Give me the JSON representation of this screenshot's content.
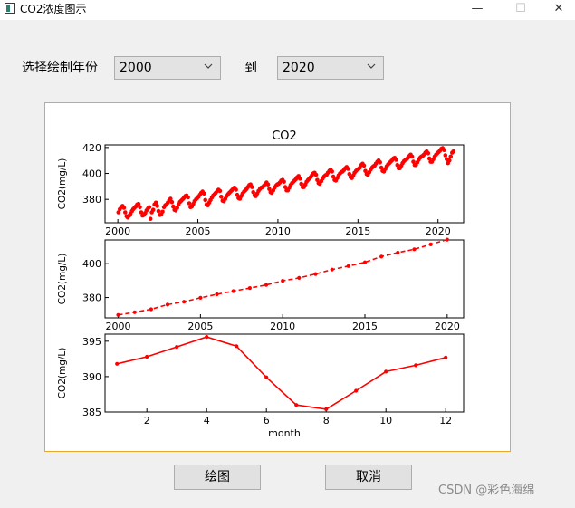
{
  "window": {
    "title": "CO2浓度图示",
    "minimize_glyph": "—",
    "maximize_glyph": "☐",
    "close_glyph": "✕"
  },
  "controls": {
    "range_label": "选择绘制年份",
    "start_year": "2000",
    "to_label": "到",
    "end_year": "2020"
  },
  "buttons": {
    "plot": "绘图",
    "cancel": "取消"
  },
  "watermark": "CSDN @彩色海绵",
  "chart_data": [
    {
      "type": "scatter",
      "title": "CO2",
      "ylabel": "CO2(mg/L)",
      "xlabel": "",
      "xlim": [
        1999.2,
        2021.6
      ],
      "ylim": [
        362,
        422
      ],
      "xticks": [
        2000,
        2005,
        2010,
        2015,
        2020
      ],
      "yticks": [
        380,
        400,
        420
      ],
      "color": "#ff0000",
      "marker": "dot",
      "series": [
        {
          "x": [
            2000.04,
            2000.12,
            2000.21,
            2000.29,
            2000.38,
            2000.46,
            2000.54,
            2000.62,
            2000.71,
            2000.79,
            2000.88,
            2000.96,
            2001.04,
            2001.12,
            2001.21,
            2001.29,
            2001.38,
            2001.46,
            2001.54,
            2001.62,
            2001.71,
            2001.79,
            2001.88,
            2001.96,
            2002.04,
            2002.12,
            2002.21,
            2002.29,
            2002.38,
            2002.46,
            2002.54,
            2002.62,
            2002.71,
            2002.79,
            2002.88,
            2002.96,
            2003.04,
            2003.12,
            2003.21,
            2003.29,
            2003.38,
            2003.46,
            2003.54,
            2003.62,
            2003.71,
            2003.79,
            2003.88,
            2003.96,
            2004.04,
            2004.12,
            2004.21,
            2004.29,
            2004.38,
            2004.46,
            2004.54,
            2004.62,
            2004.71,
            2004.79,
            2004.88,
            2004.96,
            2005.04,
            2005.12,
            2005.21,
            2005.29,
            2005.38,
            2005.46,
            2005.54,
            2005.62,
            2005.71,
            2005.79,
            2005.88,
            2005.96,
            2006.04,
            2006.12,
            2006.21,
            2006.29,
            2006.38,
            2006.46,
            2006.54,
            2006.62,
            2006.71,
            2006.79,
            2006.88,
            2006.96,
            2007.04,
            2007.12,
            2007.21,
            2007.29,
            2007.38,
            2007.46,
            2007.54,
            2007.62,
            2007.71,
            2007.79,
            2007.88,
            2007.96,
            2008.04,
            2008.12,
            2008.21,
            2008.29,
            2008.38,
            2008.46,
            2008.54,
            2008.62,
            2008.71,
            2008.79,
            2008.88,
            2008.96,
            2009.04,
            2009.12,
            2009.21,
            2009.29,
            2009.38,
            2009.46,
            2009.54,
            2009.62,
            2009.71,
            2009.79,
            2009.88,
            2009.96,
            2010.04,
            2010.12,
            2010.21,
            2010.29,
            2010.38,
            2010.46,
            2010.54,
            2010.62,
            2010.71,
            2010.79,
            2010.88,
            2010.96,
            2011.04,
            2011.12,
            2011.21,
            2011.29,
            2011.38,
            2011.46,
            2011.54,
            2011.62,
            2011.71,
            2011.79,
            2011.88,
            2011.96,
            2012.04,
            2012.12,
            2012.21,
            2012.29,
            2012.38,
            2012.46,
            2012.54,
            2012.62,
            2012.71,
            2012.79,
            2012.88,
            2012.96,
            2013.04,
            2013.12,
            2013.21,
            2013.29,
            2013.38,
            2013.46,
            2013.54,
            2013.62,
            2013.71,
            2013.79,
            2013.88,
            2013.96,
            2014.04,
            2014.12,
            2014.21,
            2014.29,
            2014.38,
            2014.46,
            2014.54,
            2014.62,
            2014.71,
            2014.79,
            2014.88,
            2014.96,
            2015.04,
            2015.12,
            2015.21,
            2015.29,
            2015.38,
            2015.46,
            2015.54,
            2015.62,
            2015.71,
            2015.79,
            2015.88,
            2015.96,
            2016.04,
            2016.12,
            2016.21,
            2016.29,
            2016.38,
            2016.46,
            2016.54,
            2016.62,
            2016.71,
            2016.79,
            2016.88,
            2016.96,
            2017.04,
            2017.12,
            2017.21,
            2017.29,
            2017.38,
            2017.46,
            2017.54,
            2017.62,
            2017.71,
            2017.79,
            2017.88,
            2017.96,
            2018.04,
            2018.12,
            2018.21,
            2018.29,
            2018.38,
            2018.46,
            2018.54,
            2018.62,
            2018.71,
            2018.79,
            2018.88,
            2018.96,
            2019.04,
            2019.12,
            2019.21,
            2019.29,
            2019.38,
            2019.46,
            2019.54,
            2019.62,
            2019.71,
            2019.79,
            2019.88,
            2019.96,
            2020.04,
            2020.12,
            2020.21,
            2020.29,
            2020.38,
            2020.46,
            2020.54,
            2020.62,
            2020.71,
            2020.79,
            2020.88,
            2020.96
          ],
          "y": [
            370.0,
            372.5,
            374.0,
            375.0,
            373.5,
            370.0,
            367.0,
            366.0,
            367.5,
            369.0,
            371.0,
            372.5,
            373.5,
            374.5,
            376.0,
            376.5,
            374.0,
            370.0,
            367.5,
            368.0,
            369.5,
            371.5,
            373.0,
            374.0,
            365.0,
            370.0,
            372.0,
            376.0,
            377.5,
            375.0,
            371.0,
            368.0,
            368.5,
            370.5,
            374.0,
            375.5,
            376.0,
            377.5,
            379.5,
            380.5,
            378.0,
            374.5,
            372.0,
            371.5,
            373.5,
            376.0,
            378.0,
            379.0,
            380.0,
            381.0,
            382.5,
            383.0,
            381.5,
            377.0,
            374.0,
            374.5,
            376.5,
            378.5,
            380.0,
            381.0,
            382.0,
            383.5,
            385.0,
            386.0,
            384.5,
            379.5,
            376.0,
            375.5,
            377.5,
            379.5,
            381.5,
            383.0,
            384.0,
            385.0,
            386.5,
            387.5,
            386.5,
            382.0,
            379.0,
            378.5,
            380.5,
            382.5,
            384.0,
            385.0,
            386.0,
            387.0,
            388.5,
            389.0,
            387.5,
            383.5,
            381.0,
            380.5,
            382.5,
            384.5,
            386.0,
            387.0,
            388.0,
            389.5,
            391.0,
            391.5,
            389.5,
            385.5,
            383.0,
            382.5,
            384.5,
            386.5,
            388.0,
            389.0,
            389.5,
            390.5,
            392.0,
            393.0,
            391.5,
            388.0,
            385.5,
            385.0,
            387.0,
            389.0,
            390.5,
            391.5,
            392.0,
            393.0,
            394.5,
            395.0,
            393.5,
            389.5,
            387.0,
            387.0,
            389.0,
            391.0,
            392.5,
            393.5,
            394.5,
            395.5,
            397.0,
            398.0,
            396.0,
            392.0,
            389.5,
            389.5,
            391.5,
            393.5,
            395.0,
            396.0,
            397.0,
            398.5,
            400.0,
            400.5,
            399.0,
            395.0,
            392.5,
            392.0,
            394.0,
            396.0,
            397.5,
            398.5,
            399.0,
            400.5,
            402.0,
            403.0,
            401.5,
            397.5,
            395.0,
            394.5,
            396.5,
            398.5,
            400.0,
            401.0,
            401.5,
            402.5,
            404.0,
            405.0,
            403.5,
            399.5,
            397.0,
            396.5,
            398.5,
            400.5,
            402.0,
            403.0,
            403.5,
            404.5,
            406.5,
            407.5,
            406.0,
            402.0,
            399.5,
            399.0,
            401.0,
            403.0,
            404.5,
            405.5,
            406.0,
            407.5,
            409.0,
            410.0,
            408.5,
            404.5,
            402.0,
            401.5,
            403.5,
            405.5,
            407.0,
            408.0,
            409.0,
            410.0,
            411.5,
            412.0,
            410.5,
            406.5,
            404.0,
            404.0,
            406.0,
            408.0,
            409.5,
            410.5,
            411.0,
            412.0,
            413.5,
            414.5,
            413.0,
            409.0,
            406.5,
            406.5,
            408.5,
            410.5,
            412.0,
            413.0,
            413.5,
            414.5,
            416.0,
            417.0,
            415.5,
            411.5,
            409.0,
            409.0,
            411.0,
            413.0,
            414.5,
            415.5,
            416.5,
            417.5,
            419.0,
            419.5,
            418.0,
            414.0,
            411.0,
            408.0,
            410.0,
            413.0,
            416.0,
            417.0
          ]
        }
      ]
    },
    {
      "type": "line",
      "title": "",
      "ylabel": "CO2(mg/L)",
      "xlabel": "",
      "xlim": [
        1999.2,
        2021.0
      ],
      "ylim": [
        368,
        414
      ],
      "xticks": [
        2000,
        2005,
        2010,
        2015,
        2020
      ],
      "yticks": [
        380,
        400
      ],
      "color": "#ff0000",
      "linestyle": "dashed",
      "marker": "dot",
      "series": [
        {
          "x": [
            2000,
            2001,
            2002,
            2003,
            2004,
            2005,
            2006,
            2007,
            2008,
            2009,
            2010,
            2011,
            2012,
            2013,
            2014,
            2015,
            2016,
            2017,
            2018,
            2019,
            2020
          ],
          "y": [
            369.7,
            371.3,
            373.1,
            375.8,
            377.5,
            379.8,
            381.9,
            383.8,
            385.6,
            387.4,
            389.9,
            391.6,
            393.9,
            396.5,
            398.6,
            400.8,
            404.2,
            406.5,
            408.5,
            411.4,
            414.2
          ]
        }
      ]
    },
    {
      "type": "line",
      "title": "",
      "ylabel": "CO2(mg/L)",
      "xlabel": "month",
      "xlim": [
        0.6,
        12.6
      ],
      "ylim": [
        385,
        396
      ],
      "xticks": [
        2,
        4,
        6,
        8,
        10,
        12
      ],
      "yticks": [
        385,
        390,
        395
      ],
      "color": "#ff0000",
      "linestyle": "solid",
      "marker": "dot",
      "series": [
        {
          "x": [
            1,
            2,
            3,
            4,
            5,
            6,
            7,
            8,
            9,
            10,
            11,
            12
          ],
          "y": [
            391.8,
            392.8,
            394.2,
            395.6,
            394.3,
            389.9,
            386.0,
            385.4,
            388.0,
            390.7,
            391.6,
            392.7
          ]
        }
      ]
    }
  ]
}
